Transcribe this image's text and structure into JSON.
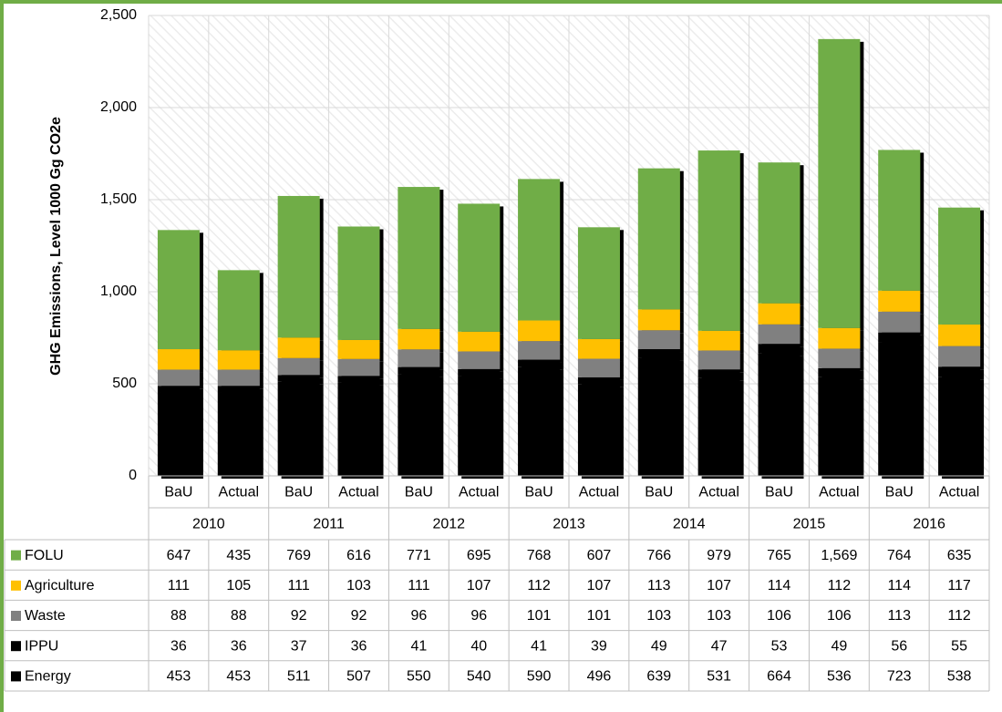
{
  "chart_data": {
    "type": "stacked_bar",
    "y_label": "GHG Emissions, Level 1000 Gg CO2e",
    "groups": [
      "2010",
      "2011",
      "2012",
      "2013",
      "2014",
      "2015",
      "2016"
    ],
    "categories": [
      "BaU",
      "Actual",
      "BaU",
      "Actual",
      "BaU",
      "Actual",
      "BaU",
      "Actual",
      "BaU",
      "Actual",
      "BaU",
      "Actual",
      "BaU",
      "Actual"
    ],
    "series": [
      {
        "name": "FOLU",
        "color": "#70ad47",
        "values": [
          647,
          435,
          769,
          616,
          771,
          695,
          768,
          607,
          766,
          979,
          765,
          1569,
          764,
          635
        ],
        "value_labels": [
          "647",
          "435",
          "769",
          "616",
          "771",
          "695",
          "768",
          "607",
          "766",
          "979",
          "765",
          "1,569",
          "764",
          "635"
        ]
      },
      {
        "name": "Agriculture",
        "color": "#ffc000",
        "values": [
          111,
          105,
          111,
          103,
          111,
          107,
          112,
          107,
          113,
          107,
          114,
          112,
          114,
          117
        ]
      },
      {
        "name": "Waste",
        "color": "#808080",
        "values": [
          88,
          88,
          92,
          92,
          96,
          96,
          101,
          101,
          103,
          103,
          106,
          106,
          113,
          112
        ]
      },
      {
        "name": "IPPU",
        "color": "#000000",
        "values": [
          36,
          36,
          37,
          36,
          41,
          40,
          41,
          39,
          49,
          47,
          53,
          49,
          56,
          55
        ]
      },
      {
        "name": "Energy",
        "color": "#000000",
        "values": [
          453,
          453,
          511,
          507,
          550,
          540,
          590,
          496,
          639,
          531,
          664,
          536,
          723,
          538
        ]
      }
    ],
    "ylim": [
      0,
      2500
    ],
    "yticks": [
      0,
      500,
      {
        "value": 1000,
        "label": "1,000"
      },
      {
        "value": 1500,
        "label": "1,500"
      },
      {
        "value": 2000,
        "label": "2,000"
      },
      {
        "value": 2500,
        "label": "2,500"
      }
    ],
    "grid": true
  }
}
